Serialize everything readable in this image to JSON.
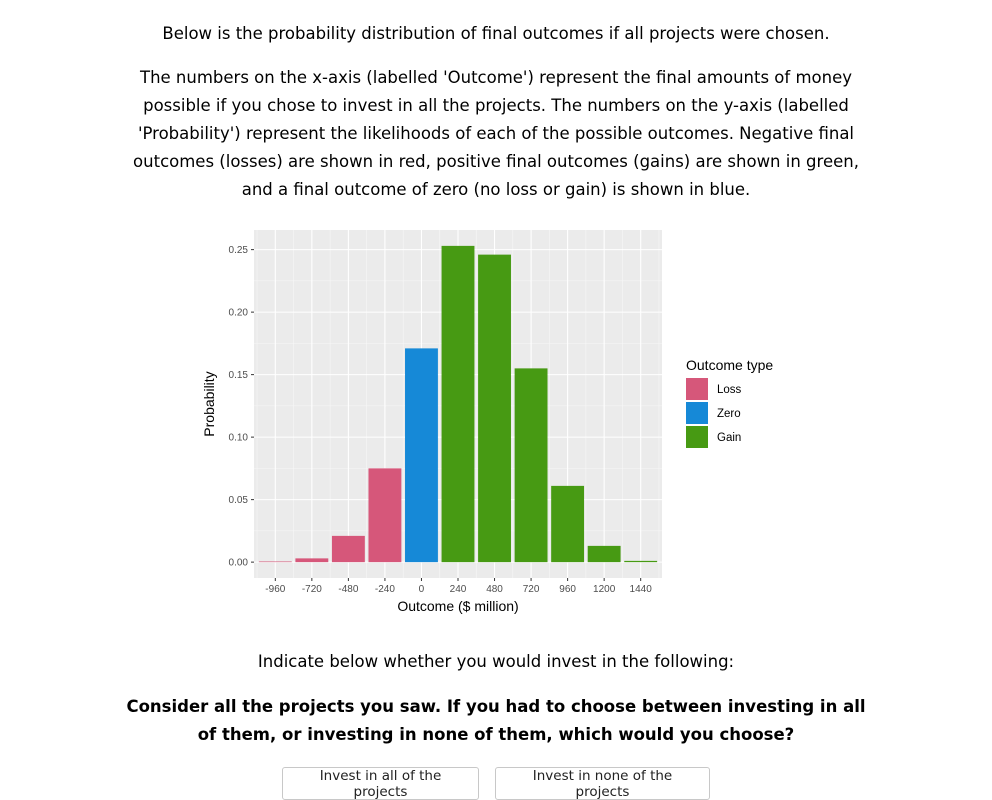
{
  "intro": "Below is the probability distribution of final outcomes if all projects were chosen.",
  "description": "The numbers on the x-axis (labelled 'Outcome') represent the final amounts of money possible if you chose to invest in all the projects. The numbers on the y-axis (labelled 'Probability') represent the likelihoods of each of the possible outcomes. Negative final outcomes (losses) are shown in red, positive final outcomes (gains) are shown in green, and a final outcome of zero (no loss or gain) is shown in blue.",
  "instruction": "Indicate below whether you would invest in the following:",
  "question": "Consider all the projects you saw. If you had to choose between investing in all of them, or investing in none of them, which would you choose?",
  "buttons": {
    "all": "Invest in all of the projects",
    "none": "Invest in none of the projects"
  },
  "chart_data": {
    "type": "bar",
    "xlabel": "Outcome ($ million)",
    "ylabel": "Probability",
    "x": [
      -960,
      -720,
      -480,
      -240,
      0,
      240,
      480,
      720,
      960,
      1200,
      1440
    ],
    "values": [
      0.0005,
      0.003,
      0.021,
      0.075,
      0.171,
      0.253,
      0.246,
      0.155,
      0.061,
      0.013,
      0.001
    ],
    "categories_type": [
      "Loss",
      "Loss",
      "Loss",
      "Loss",
      "Zero",
      "Gain",
      "Gain",
      "Gain",
      "Gain",
      "Gain",
      "Gain"
    ],
    "x_ticks": [
      "-960",
      "-720",
      "-480",
      "-240",
      "0",
      "240",
      "480",
      "720",
      "960",
      "1200",
      "1440"
    ],
    "y_ticks": [
      0.0,
      0.05,
      0.1,
      0.15,
      0.2,
      0.25
    ],
    "y_tick_labels": [
      "0.00",
      "0.05",
      "0.10",
      "0.15",
      "0.20",
      "0.25"
    ],
    "xlim": [
      -1100,
      1580
    ],
    "ylim": [
      -0.0127,
      0.2657
    ],
    "grid": true,
    "legend": {
      "title": "Outcome type",
      "placement": "right",
      "entries": [
        {
          "name": "Loss",
          "color": "#d6577a"
        },
        {
          "name": "Zero",
          "color": "#1689d7"
        },
        {
          "name": "Gain",
          "color": "#479a13"
        }
      ]
    },
    "panel_background": "#ebebeb"
  }
}
